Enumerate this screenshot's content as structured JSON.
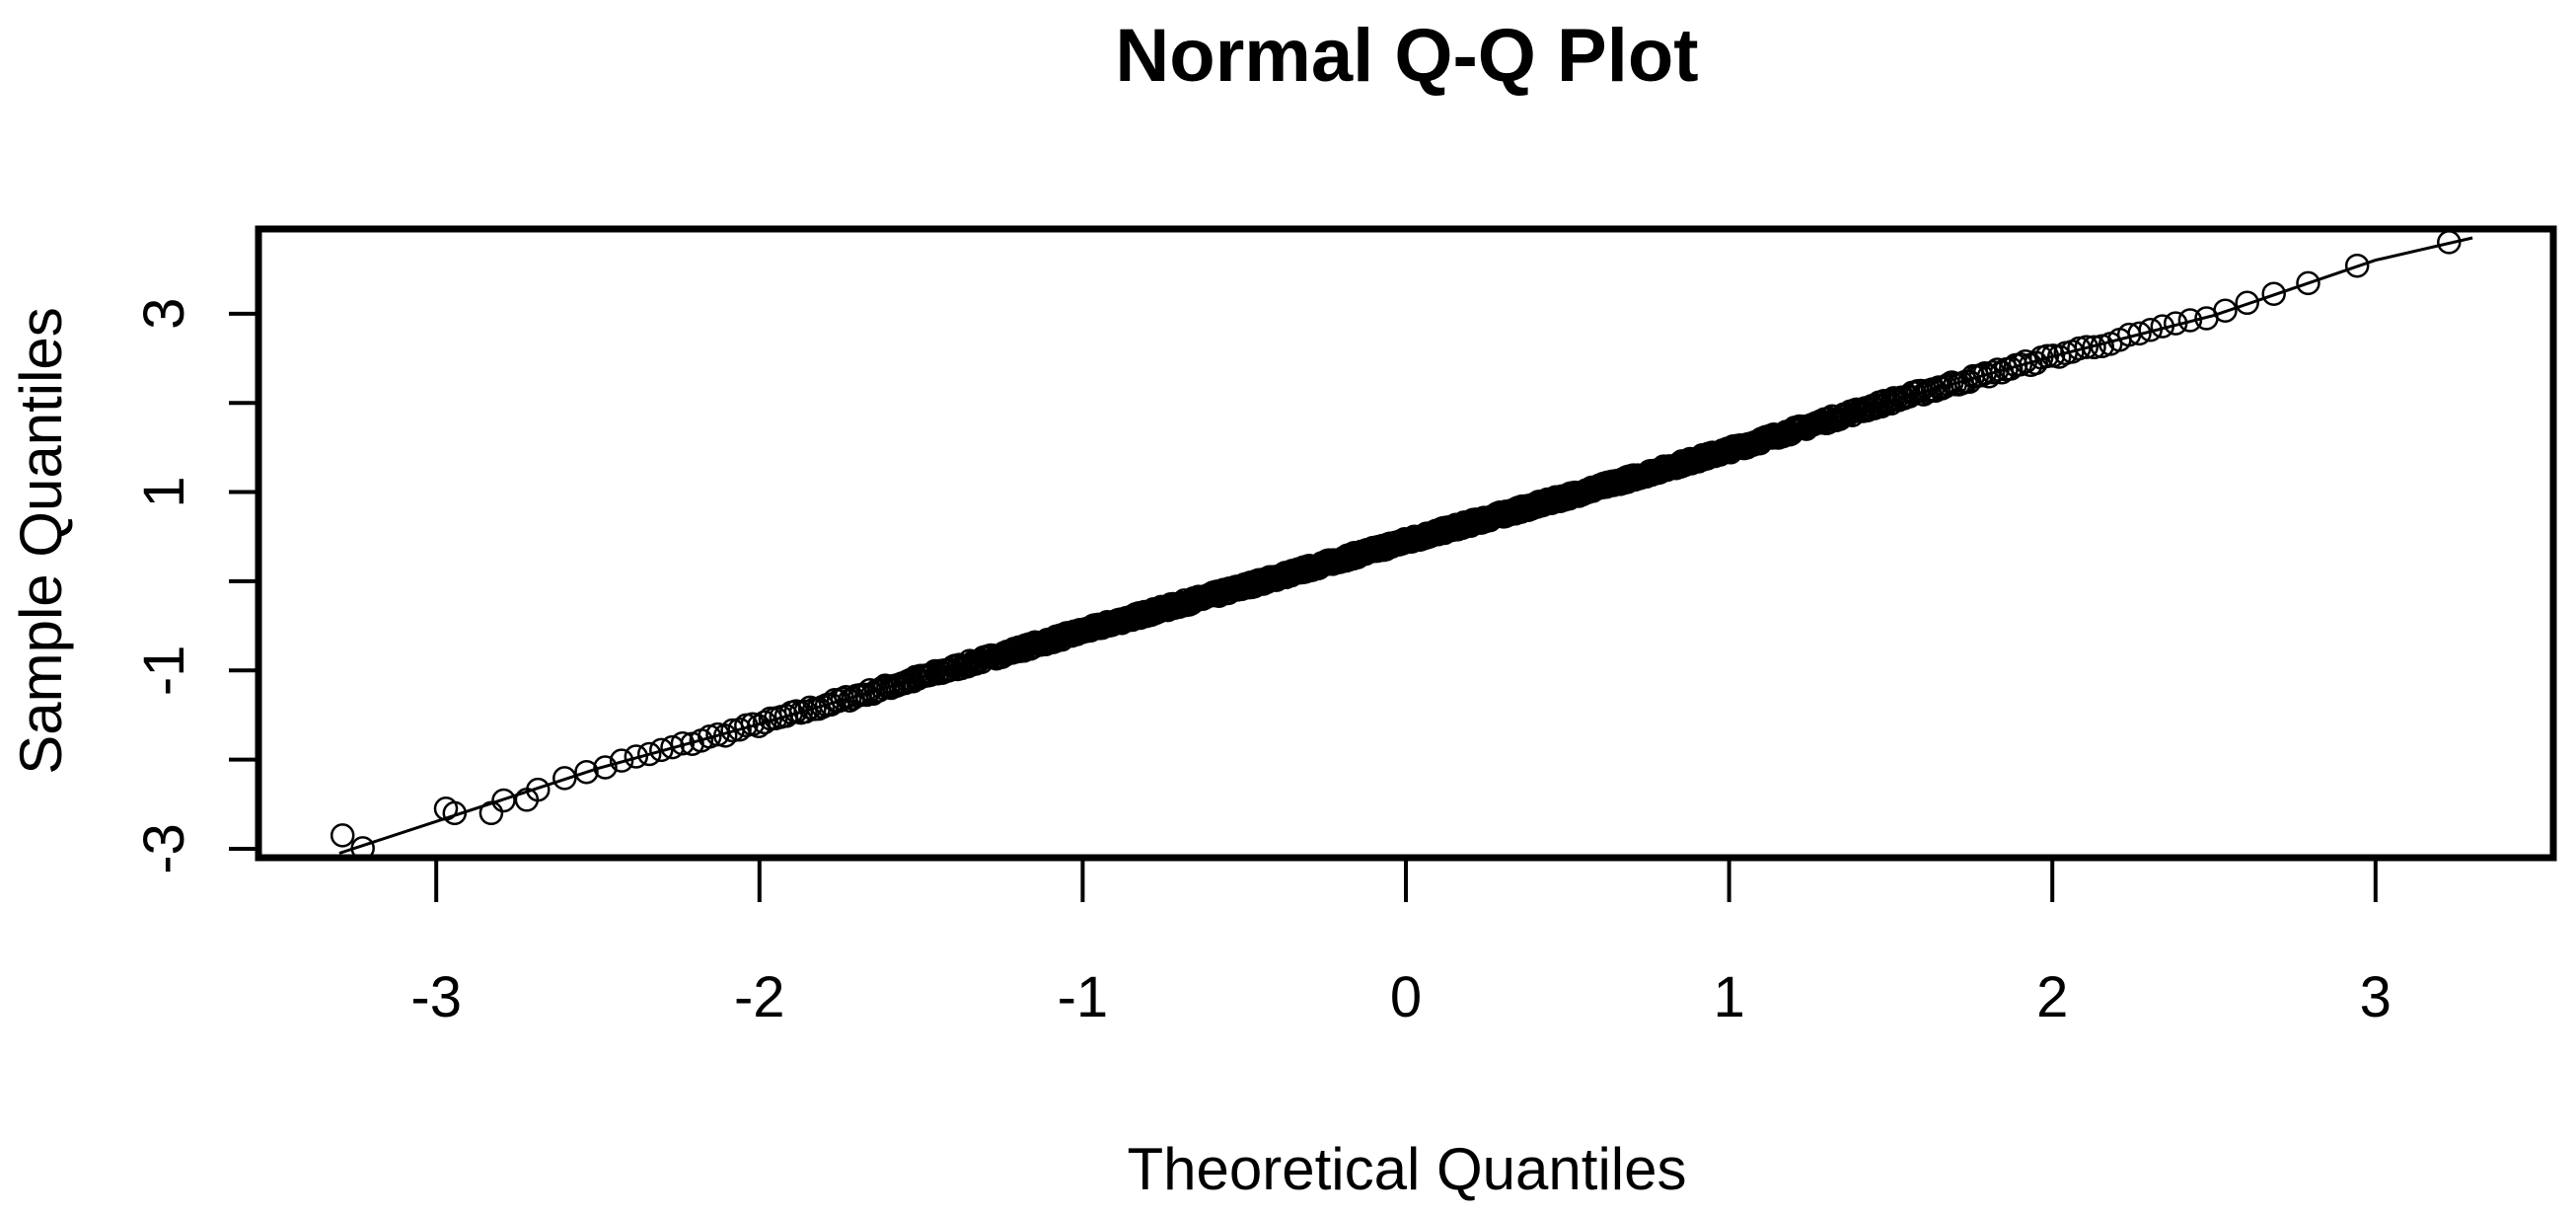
{
  "chart_data": {
    "type": "scatter",
    "title": "Normal Q-Q Plot",
    "xlabel": "Theoretical Quantiles",
    "ylabel": "Sample Quantiles",
    "xlim": [
      -3.55,
      3.55
    ],
    "ylim": [
      -3.1,
      3.95
    ],
    "x_ticks": [
      -3,
      -2,
      -1,
      0,
      1,
      2,
      3
    ],
    "x_tick_labels": [
      "-3",
      "-2",
      "-1",
      "0",
      "1",
      "2",
      "3"
    ],
    "y_ticks": [
      -3,
      -2,
      -1,
      0,
      1,
      2,
      3
    ],
    "y_tick_labels": [
      "-3",
      "",
      "-1",
      "",
      "1",
      "",
      "3"
    ],
    "grid": false,
    "legend": "none",
    "marker": "open-circle",
    "n_points": 1000,
    "reference_line": {
      "type": "curve",
      "x": [
        -3.3,
        -2.5,
        -2.0,
        -1.5,
        -1.0,
        -0.5,
        0.0,
        0.5,
        1.0,
        1.5,
        2.0,
        2.5,
        3.0,
        3.3
      ],
      "y": [
        -3.05,
        -2.1,
        -1.6,
        -1.08,
        -0.56,
        -0.06,
        0.45,
        0.95,
        1.47,
        2.02,
        2.52,
        2.98,
        3.6,
        3.85
      ]
    },
    "series": [
      {
        "sample_quantiles_x": [
          -3.3,
          -2.5,
          -2.0,
          -1.5,
          -1.0,
          -0.5,
          0.0,
          0.5,
          1.0,
          1.5,
          2.0,
          2.5,
          3.0,
          3.3
        ],
        "sample_quantiles_y": [
          -3.05,
          -2.1,
          -1.6,
          -1.08,
          -0.56,
          -0.06,
          0.45,
          0.95,
          1.47,
          2.02,
          2.52,
          2.98,
          3.6,
          3.85
        ],
        "points": [
          {
            "x": -3.29,
            "y": -2.85
          },
          {
            "x": -2.97,
            "y": -2.55
          },
          {
            "x": -2.83,
            "y": -2.6
          },
          {
            "x": -2.72,
            "y": -2.45
          }
        ]
      }
    ]
  }
}
